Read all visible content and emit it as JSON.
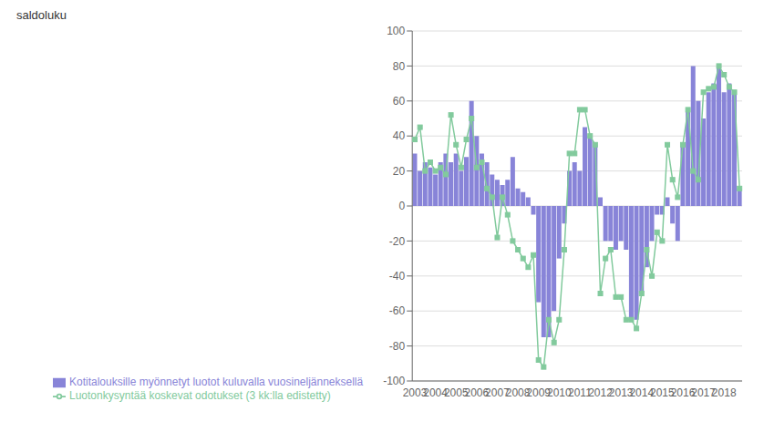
{
  "chart_data": {
    "type": "bar",
    "ylabel": "saldoluku",
    "categories": [
      2003,
      null,
      null,
      null,
      2004,
      null,
      null,
      null,
      2005,
      null,
      null,
      null,
      2006,
      null,
      null,
      null,
      2007,
      null,
      null,
      null,
      2008,
      null,
      null,
      null,
      2009,
      null,
      null,
      null,
      2010,
      null,
      null,
      null,
      2011,
      null,
      null,
      null,
      2012,
      null,
      null,
      null,
      2013,
      null,
      null,
      null,
      2014,
      null,
      null,
      null,
      2015,
      null,
      null,
      null,
      2016,
      null,
      null,
      null,
      2017,
      null,
      null,
      null,
      2018,
      null,
      null,
      null
    ],
    "series": [
      {
        "name": "Kotitalouksille myönnetyt luotot kuluvalla vuosineljänneksellä",
        "type": "bar",
        "values": [
          30,
          20,
          25,
          22,
          18,
          25,
          30,
          25,
          30,
          20,
          28,
          60,
          40,
          30,
          25,
          18,
          15,
          12,
          15,
          28,
          10,
          8,
          5,
          -5,
          -55,
          -75,
          -75,
          -60,
          -30,
          -10,
          20,
          25,
          20,
          45,
          40,
          35,
          5,
          -20,
          -20,
          -25,
          -20,
          -25,
          -65,
          -65,
          -50,
          -35,
          -20,
          -5,
          -5,
          5,
          -10,
          -20,
          35,
          55,
          80,
          60,
          50,
          65,
          70,
          80,
          65,
          70,
          65,
          10
        ]
      },
      {
        "name": "Luotonkysyntää koskevat odotukset (3 kk:lla edistetty)",
        "type": "line",
        "marker": "square",
        "values": [
          38,
          45,
          20,
          25,
          20,
          22,
          18,
          52,
          35,
          22,
          38,
          50,
          22,
          25,
          10,
          5,
          -18,
          5,
          -5,
          -20,
          -25,
          -30,
          -35,
          -28,
          -88,
          -92,
          -65,
          -78,
          -65,
          -25,
          30,
          30,
          55,
          55,
          40,
          35,
          -50,
          -30,
          -25,
          -52,
          -52,
          -65,
          -65,
          -70,
          -50,
          -25,
          -40,
          -15,
          -20,
          35,
          15,
          5,
          35,
          55,
          20,
          15,
          65,
          67,
          68,
          80,
          75,
          68,
          65,
          10
        ]
      }
    ],
    "ylim": [
      -100,
      100
    ],
    "yticks": [
      -100,
      -80,
      -60,
      -40,
      -20,
      0,
      20,
      40,
      60,
      80,
      100
    ],
    "grid": true,
    "legend": "bottom"
  }
}
